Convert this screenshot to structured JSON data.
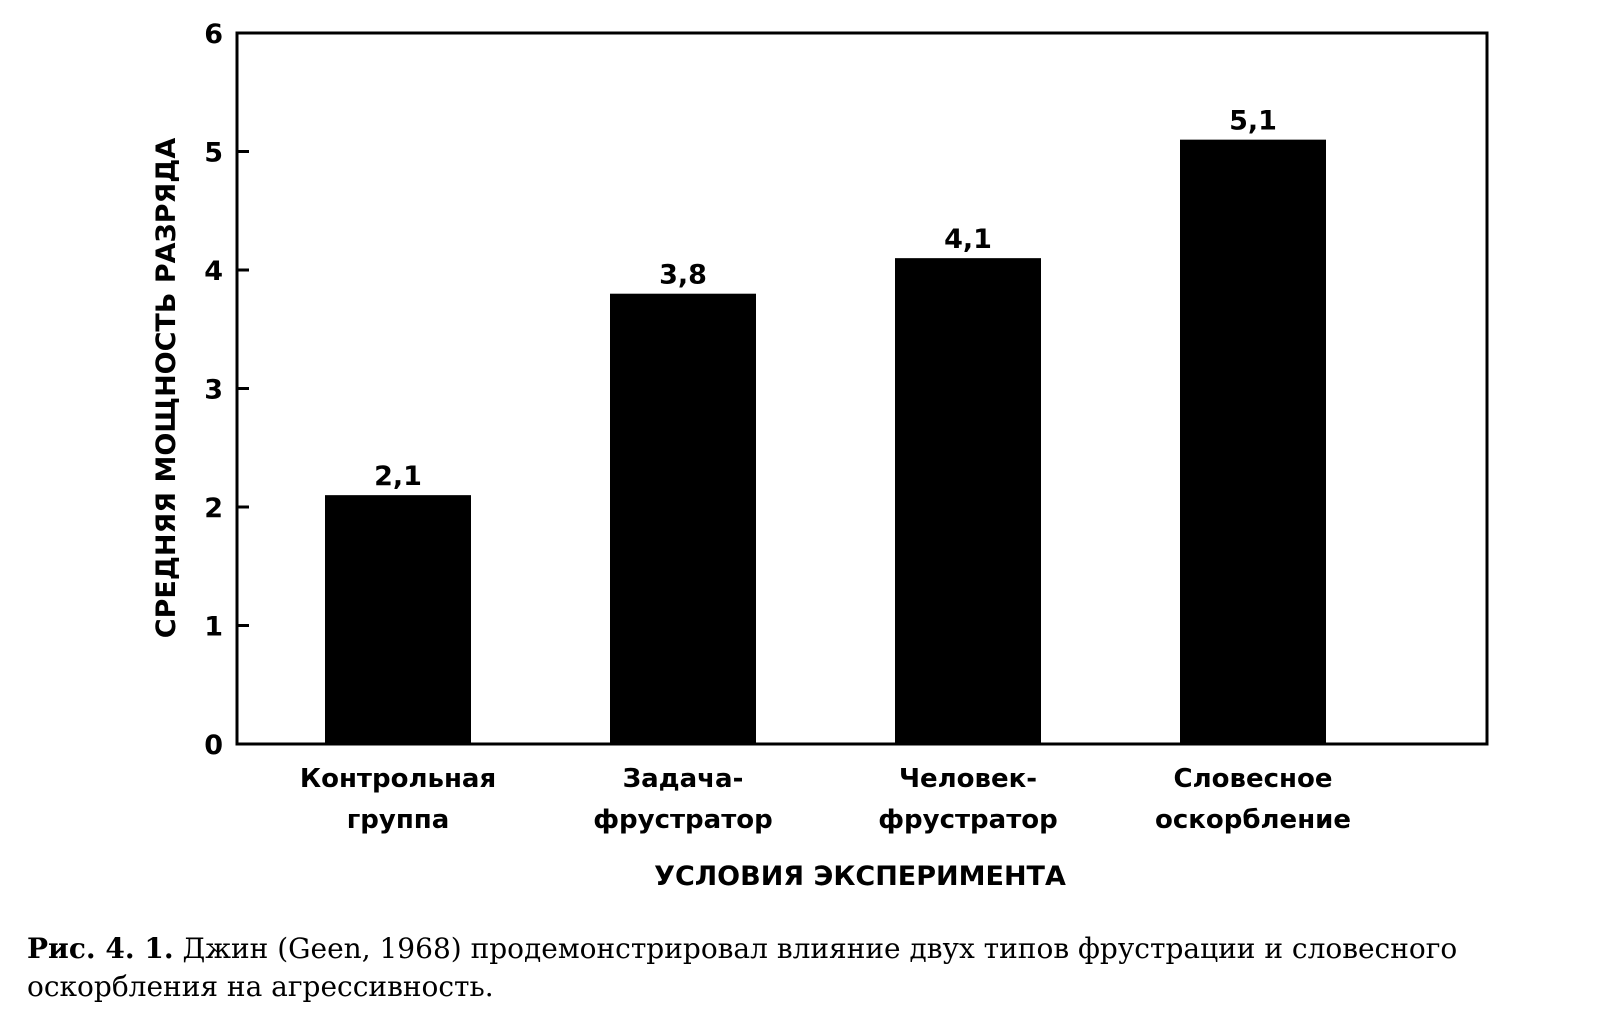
{
  "chart_data": {
    "type": "bar",
    "categories": [
      [
        "Контрольная",
        "группа"
      ],
      [
        "Задача-",
        "фрустратор"
      ],
      [
        "Человек-",
        "фрустратор"
      ],
      [
        "Словесное",
        "оскорбление"
      ]
    ],
    "values": [
      2.1,
      3.8,
      4.1,
      5.1
    ],
    "value_labels": [
      "2,1",
      "3,8",
      "4,1",
      "5,1"
    ],
    "y_ticks": [
      0,
      1,
      2,
      3,
      4,
      5,
      6
    ],
    "ylim": [
      0,
      6
    ],
    "xlabel": "УСЛОВИЯ ЭКСПЕРИМЕНТА",
    "ylabel": "СРЕДНЯЯ МОЩНОСТЬ РАЗРЯДА",
    "bar_color": "#000000",
    "grid": false,
    "legend": "none"
  },
  "caption": {
    "label": "Рис. 4. 1.",
    "text": "Джин (Geen, 1968) продемонстрировал влияние двух типов фрустрации и словесного оскорбления на агрессивность."
  }
}
